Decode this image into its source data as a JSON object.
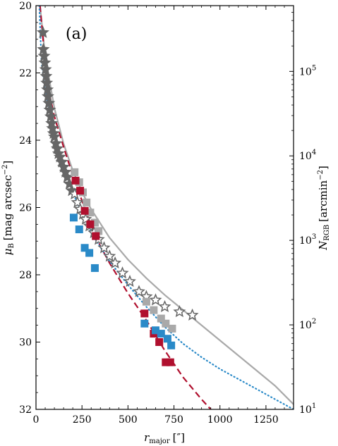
{
  "chart_data": {
    "type": "scatter",
    "panel_label": "(a)",
    "xlabel": {
      "main": "r",
      "sub": "major",
      "unit": "[″]"
    },
    "ylabel_left": {
      "main": "μ",
      "sub": "B",
      "unit_pre": "[mag arcsec",
      "unit_sup": "−2",
      "unit_post": "]"
    },
    "ylabel_right": {
      "main": "N",
      "sub": "RGB",
      "unit_pre": "[arcmin",
      "unit_sup": "−2",
      "unit_post": "]"
    },
    "xlim": [
      0,
      1400
    ],
    "ylim_left": [
      32,
      20
    ],
    "ylim_right_log": [
      10,
      600000
    ],
    "x_ticks": [
      0,
      250,
      500,
      750,
      1000,
      1250
    ],
    "x_tick_labels": [
      "0",
      "250",
      "500",
      "750",
      "1000",
      "1250"
    ],
    "y_ticks_left": [
      20,
      22,
      24,
      26,
      28,
      30,
      32
    ],
    "y_tick_labels_left": [
      "20",
      "22",
      "24",
      "26",
      "28",
      "30",
      "32"
    ],
    "y_ticks_right": [
      10,
      100,
      1000,
      10000,
      100000
    ],
    "y_tick_labels_right": [
      {
        "base": "10",
        "exp": "1"
      },
      {
        "base": "10",
        "exp": "2"
      },
      {
        "base": "10",
        "exp": "3"
      },
      {
        "base": "10",
        "exp": "4"
      },
      {
        "base": "10",
        "exp": "5"
      }
    ],
    "colors": {
      "red": "#b0102e",
      "blue": "#2a8ac8",
      "lightgray": "#a9a9a9",
      "darkgray": "#666666",
      "axis": "#000000"
    },
    "series": [
      {
        "marker": "star",
        "color": "#666666",
        "filled": true,
        "points": [
          [
            38,
            20.8
          ],
          [
            40,
            21.3
          ],
          [
            44,
            21.5
          ],
          [
            48,
            21.7
          ],
          [
            52,
            21.9
          ],
          [
            55,
            22.1
          ],
          [
            58,
            22.3
          ],
          [
            62,
            22.5
          ],
          [
            65,
            22.7
          ],
          [
            70,
            22.9
          ],
          [
            75,
            23.1
          ],
          [
            80,
            23.3
          ],
          [
            85,
            23.5
          ],
          [
            90,
            23.65
          ],
          [
            95,
            23.8
          ],
          [
            100,
            23.9
          ],
          [
            108,
            24.1
          ],
          [
            115,
            24.25
          ],
          [
            122,
            24.4
          ],
          [
            130,
            24.5
          ],
          [
            140,
            24.65
          ],
          [
            150,
            24.8
          ],
          [
            160,
            24.95
          ],
          [
            170,
            25.1
          ],
          [
            182,
            25.3
          ],
          [
            195,
            25.5
          ]
        ]
      },
      {
        "marker": "star",
        "color": "#666666",
        "filled": false,
        "points": [
          [
            210,
            25.6
          ],
          [
            225,
            25.85
          ],
          [
            240,
            26.05
          ],
          [
            255,
            26.2
          ],
          [
            270,
            26.35
          ],
          [
            290,
            26.55
          ],
          [
            315,
            26.75
          ],
          [
            340,
            26.95
          ],
          [
            370,
            27.2
          ],
          [
            400,
            27.45
          ],
          [
            430,
            27.65
          ],
          [
            470,
            27.95
          ],
          [
            510,
            28.2
          ],
          [
            560,
            28.5
          ],
          [
            600,
            28.65
          ],
          [
            650,
            28.75
          ],
          [
            700,
            28.95
          ],
          [
            780,
            29.1
          ],
          [
            850,
            29.2
          ]
        ]
      },
      {
        "marker": "square",
        "color": "#a9a9a9",
        "filled": true,
        "points": [
          [
            210,
            24.95
          ],
          [
            235,
            25.25
          ],
          [
            255,
            25.55
          ],
          [
            275,
            25.85
          ],
          [
            295,
            26.15
          ],
          [
            320,
            26.45
          ],
          [
            340,
            26.7
          ],
          [
            600,
            28.8
          ],
          [
            640,
            29.05
          ],
          [
            680,
            29.3
          ],
          [
            705,
            29.45
          ],
          [
            740,
            29.6
          ]
        ]
      },
      {
        "marker": "square",
        "color": "#b0102e",
        "filled": true,
        "points": [
          [
            215,
            25.2
          ],
          [
            240,
            25.5
          ],
          [
            265,
            26.1
          ],
          [
            295,
            26.5
          ],
          [
            325,
            26.85
          ],
          [
            590,
            29.15
          ],
          [
            640,
            29.75
          ],
          [
            670,
            30.0
          ],
          [
            705,
            30.6
          ],
          [
            730,
            30.6
          ]
        ]
      },
      {
        "marker": "square",
        "color": "#2a8ac8",
        "filled": true,
        "points": [
          [
            205,
            26.3
          ],
          [
            235,
            26.65
          ],
          [
            265,
            27.2
          ],
          [
            290,
            27.35
          ],
          [
            320,
            27.8
          ],
          [
            590,
            29.45
          ],
          [
            650,
            29.65
          ],
          [
            680,
            29.75
          ],
          [
            715,
            29.9
          ],
          [
            735,
            30.1
          ]
        ]
      }
    ],
    "curves": [
      {
        "style": "solid",
        "color": "#a9a9a9",
        "points": [
          [
            22,
            20.0
          ],
          [
            50,
            21.5
          ],
          [
            100,
            23.05
          ],
          [
            150,
            24.1
          ],
          [
            200,
            24.9
          ],
          [
            260,
            25.65
          ],
          [
            300,
            26.05
          ],
          [
            400,
            26.9
          ],
          [
            500,
            27.55
          ],
          [
            600,
            28.1
          ],
          [
            700,
            28.6
          ],
          [
            800,
            29.05
          ],
          [
            900,
            29.5
          ],
          [
            1000,
            29.95
          ],
          [
            1100,
            30.4
          ],
          [
            1200,
            30.85
          ],
          [
            1300,
            31.3
          ],
          [
            1400,
            31.85
          ]
        ]
      },
      {
        "style": "dashed",
        "color": "#b0102e",
        "points": [
          [
            22,
            20.0
          ],
          [
            60,
            22.3
          ],
          [
            100,
            23.3
          ],
          [
            150,
            24.2
          ],
          [
            200,
            25.05
          ],
          [
            250,
            25.8
          ],
          [
            300,
            26.55
          ],
          [
            350,
            27.15
          ],
          [
            400,
            27.65
          ],
          [
            450,
            28.1
          ],
          [
            500,
            28.55
          ],
          [
            600,
            29.35
          ],
          [
            700,
            30.25
          ],
          [
            800,
            31.05
          ],
          [
            900,
            31.7
          ],
          [
            950,
            32.0
          ]
        ]
      },
      {
        "style": "dotted",
        "color": "#2a8ac8",
        "points": [
          [
            18,
            20.0
          ],
          [
            30,
            21.7
          ],
          [
            50,
            22.5
          ],
          [
            100,
            23.8
          ],
          [
            150,
            24.75
          ],
          [
            200,
            25.55
          ],
          [
            250,
            26.2
          ],
          [
            300,
            26.75
          ],
          [
            400,
            27.6
          ],
          [
            500,
            28.3
          ],
          [
            600,
            28.95
          ],
          [
            700,
            29.55
          ],
          [
            800,
            30.05
          ],
          [
            900,
            30.45
          ],
          [
            1000,
            30.8
          ],
          [
            1100,
            31.1
          ],
          [
            1200,
            31.4
          ],
          [
            1300,
            31.7
          ],
          [
            1400,
            32.0
          ]
        ]
      }
    ]
  }
}
